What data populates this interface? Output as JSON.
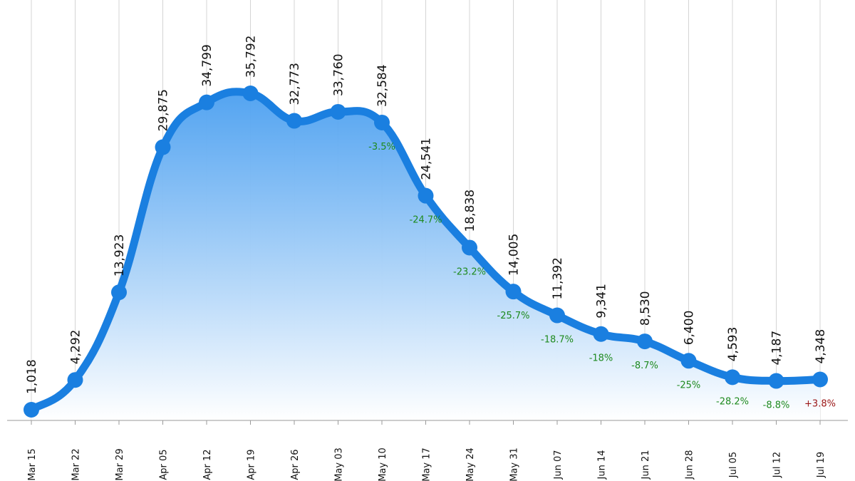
{
  "chart_data": {
    "type": "area",
    "categories": [
      "Mar 15",
      "Mar 22",
      "Mar 29",
      "Apr 05",
      "Apr 12",
      "Apr 19",
      "Apr 26",
      "May 03",
      "May 10",
      "May 17",
      "May 24",
      "May 31",
      "Jun 07",
      "Jun 14",
      "Jun 21",
      "Jun 28",
      "Jul 05",
      "Jul 12",
      "Jul 19"
    ],
    "values": [
      1018,
      4292,
      13923,
      29875,
      34799,
      35792,
      32773,
      33760,
      32584,
      24541,
      18838,
      14005,
      11392,
      9341,
      8530,
      6400,
      4593,
      4187,
      4348
    ],
    "value_labels": [
      "1,018",
      "4,292",
      "13,923",
      "29,875",
      "34,799",
      "35,792",
      "32,773",
      "33,760",
      "32,584",
      "24,541",
      "18,838",
      "14,005",
      "11,392",
      "9,341",
      "8,530",
      "6,400",
      "4,593",
      "4,187",
      "4,348"
    ],
    "pct_changes": [
      "",
      "",
      "",
      "",
      "",
      "",
      "",
      "",
      "-3.5%",
      "-24.7%",
      "-23.2%",
      "-25.7%",
      "-18.7%",
      "-18%",
      "-8.7%",
      "-25%",
      "-28.2%",
      "-8.8%",
      "+3.8%"
    ],
    "title": "",
    "xlabel": "",
    "ylabel": "",
    "ylim": [
      0,
      42000
    ],
    "grid": "vertical",
    "colors": {
      "line": "#1a7fe0",
      "fill_top": "#4a9ff0",
      "fill_bottom": "#ffffff",
      "pct_down": "#1e8a1e",
      "pct_up": "#9a1515"
    }
  }
}
